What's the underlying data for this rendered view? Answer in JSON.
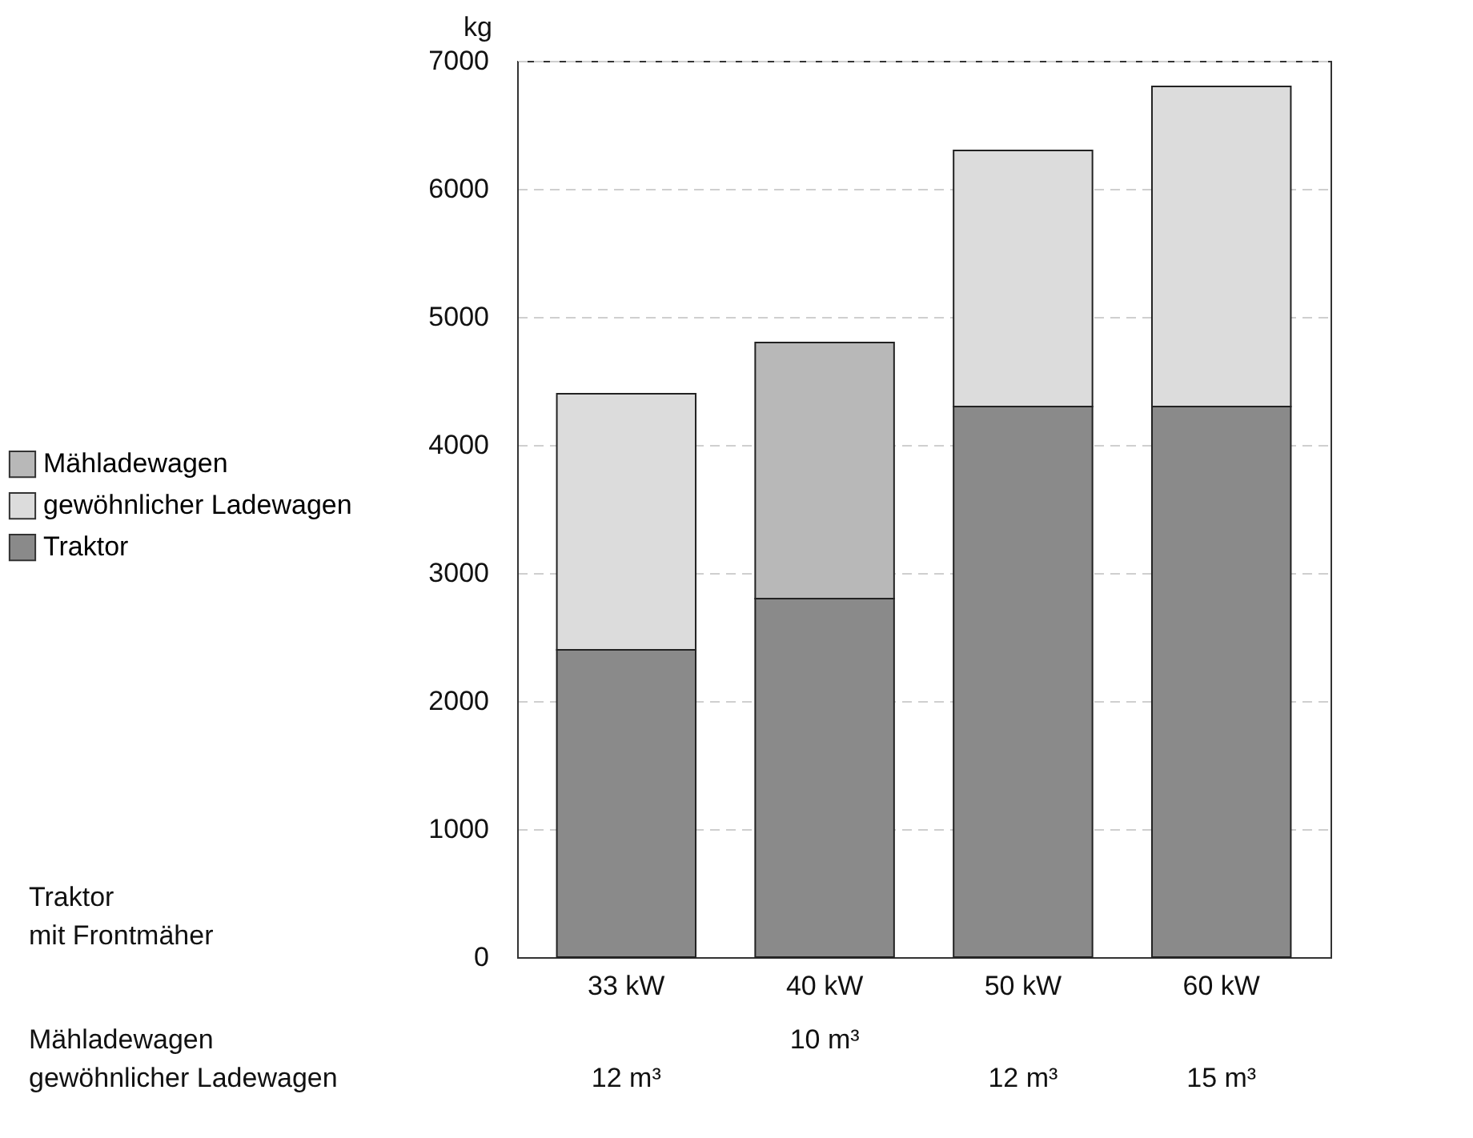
{
  "chart_data": {
    "type": "bar",
    "stacked": true,
    "ylabel": "kg",
    "categories": [
      "33 kW",
      "40 kW",
      "50 kW",
      "60 kW"
    ],
    "series": [
      {
        "name": "Traktor",
        "color": "#8a8a8a",
        "values": [
          2400,
          2800,
          4300,
          4300
        ]
      },
      {
        "name": "gewöhnlicher Ladewagen",
        "color": "#dcdcdc",
        "values": [
          2000,
          null,
          2000,
          2500
        ]
      },
      {
        "name": "Mähladewagen",
        "color": "#b8b8b8",
        "values": [
          null,
          2000,
          null,
          null
        ]
      }
    ],
    "ylim": [
      0,
      7000
    ],
    "yticks": [
      0,
      1000,
      2000,
      3000,
      4000,
      5000,
      6000,
      7000
    ],
    "grid": "y",
    "legend": "left",
    "annotations": [
      "Traktor\nmit Frontmäher",
      "Mähladewagen",
      "gewöhnlicher Ladewagen",
      "12 m³",
      "10 m³",
      "12 m³",
      "15 m³"
    ]
  }
}
